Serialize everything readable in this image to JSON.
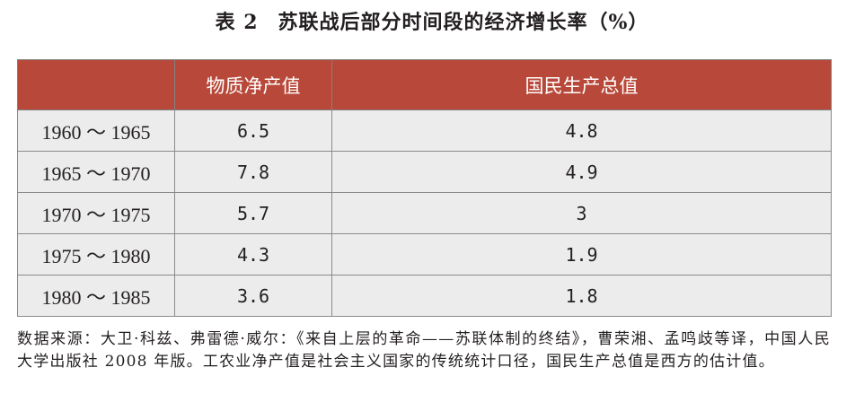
{
  "table": {
    "label": "表 2",
    "title": "苏联战后部分时间段的经济增长率（%）",
    "headers": [
      "",
      "物质净产值",
      "国民生产总值"
    ],
    "rows": [
      {
        "period": "1960 ～ 1965",
        "nmp": "6.5",
        "gnp": "4.8"
      },
      {
        "period": "1965 ～ 1970",
        "nmp": "7.8",
        "gnp": "4.9"
      },
      {
        "period": "1970 ～ 1975",
        "nmp": "5.7",
        "gnp": "3"
      },
      {
        "period": "1975 ～ 1980",
        "nmp": "4.3",
        "gnp": "1.9"
      },
      {
        "period": "1980 ～ 1985",
        "nmp": "3.6",
        "gnp": "1.8"
      }
    ]
  },
  "source_note": "数据来源：大卫·科兹、弗雷德·威尔：《来自上层的革命——苏联体制的终结》，曹荣湘、孟鸣歧等译，中国人民大学出版社 2008 年版。工农业净产值是社会主义国家的传统统计口径，国民生产总值是西方的估计值。",
  "colors": {
    "header_bg": "#b8493a",
    "header_text": "#ffffff",
    "cell_bg": "#ececec",
    "border": "#8a8a8a"
  }
}
